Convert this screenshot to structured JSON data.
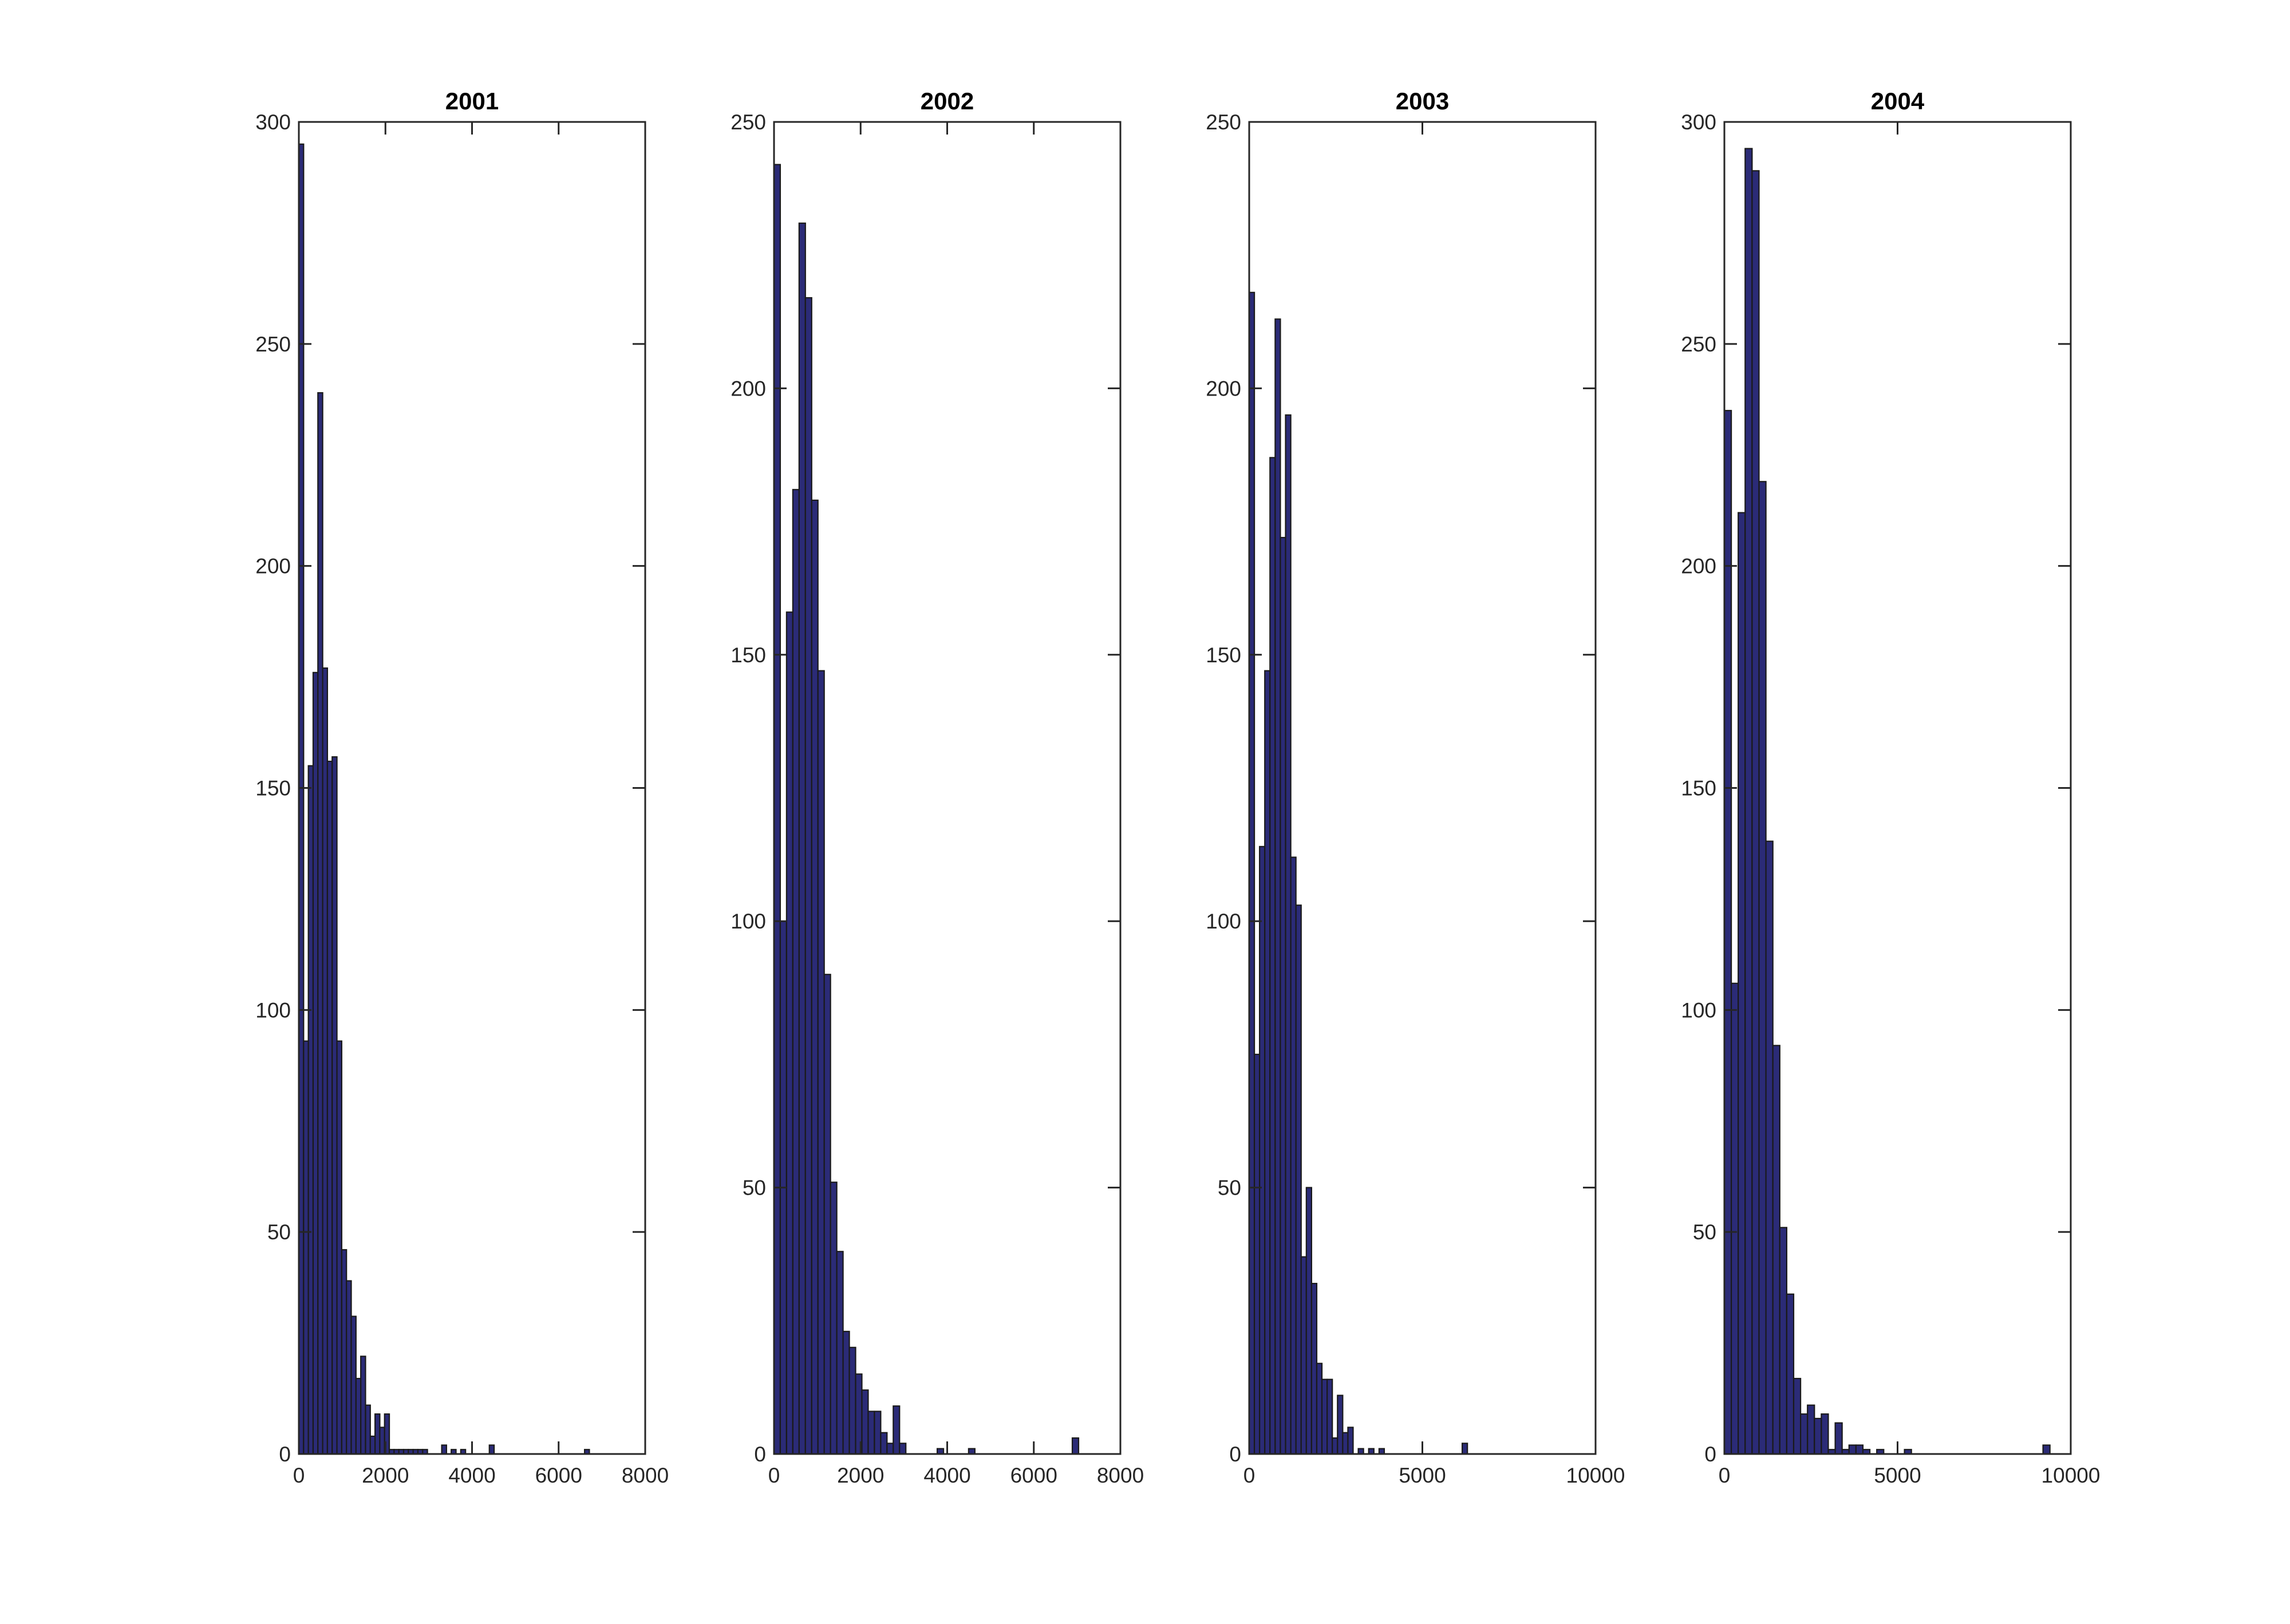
{
  "chart_data": [
    {
      "type": "bar",
      "title": "2001",
      "xlabel": "",
      "ylabel": "",
      "xlim": [
        0,
        8000
      ],
      "ylim": [
        0,
        300
      ],
      "xticks": [
        0,
        2000,
        4000,
        6000,
        8000
      ],
      "xtick_labels": [
        "0",
        "2000",
        "4000",
        "6000",
        "8000"
      ],
      "yticks": [
        0,
        50,
        100,
        150,
        200,
        250,
        300
      ],
      "ytick_labels": [
        "0",
        "50",
        "100",
        "150",
        "200",
        "250",
        "300"
      ],
      "grid": false,
      "bar_color": "#2b2b77",
      "bin_width": 110,
      "x": [
        55,
        165,
        275,
        385,
        495,
        605,
        715,
        825,
        935,
        1045,
        1155,
        1265,
        1375,
        1485,
        1595,
        1705,
        1815,
        1925,
        2035,
        2145,
        2255,
        2365,
        2475,
        2585,
        2695,
        2805,
        2915,
        3355,
        3575,
        3795,
        4455,
        6655
      ],
      "values": [
        295,
        93,
        155,
        176,
        239,
        177,
        156,
        157,
        93,
        46,
        39,
        31,
        17,
        22,
        11,
        4,
        9,
        6,
        9,
        1,
        1,
        1,
        1,
        1,
        1,
        1,
        1,
        2,
        1,
        1,
        2,
        1
      ]
    },
    {
      "type": "bar",
      "title": "2002",
      "xlabel": "",
      "ylabel": "",
      "xlim": [
        0,
        8000
      ],
      "ylim": [
        0,
        250
      ],
      "xticks": [
        0,
        2000,
        4000,
        6000,
        8000
      ],
      "xtick_labels": [
        "0",
        "2000",
        "4000",
        "6000",
        "8000"
      ],
      "yticks": [
        0,
        50,
        100,
        150,
        200,
        250
      ],
      "ytick_labels": [
        "0",
        "50",
        "100",
        "150",
        "200",
        "250"
      ],
      "grid": false,
      "bar_color": "#2b2b77",
      "bin_width": 145,
      "x": [
        72,
        217,
        362,
        507,
        652,
        797,
        942,
        1087,
        1232,
        1377,
        1522,
        1667,
        1812,
        1957,
        2102,
        2247,
        2392,
        2537,
        2682,
        2827,
        2972,
        3842,
        4567,
        6962
      ],
      "values": [
        242,
        100,
        158,
        181,
        231,
        217,
        179,
        147,
        90,
        51,
        38,
        23,
        20,
        15,
        12,
        8,
        8,
        4,
        2,
        9,
        2,
        1,
        1,
        3
      ]
    },
    {
      "type": "bar",
      "title": "2003",
      "xlabel": "",
      "ylabel": "",
      "xlim": [
        0,
        10000
      ],
      "ylim": [
        0,
        250
      ],
      "xticks": [
        0,
        5000,
        10000
      ],
      "xtick_labels": [
        "0",
        "5000",
        "10000"
      ],
      "yticks": [
        0,
        50,
        100,
        150,
        200,
        250
      ],
      "ytick_labels": [
        "0",
        "50",
        "100",
        "150",
        "200",
        "250"
      ],
      "grid": false,
      "bar_color": "#2b2b77",
      "bin_width": 150,
      "x": [
        75,
        225,
        375,
        525,
        675,
        825,
        975,
        1125,
        1275,
        1425,
        1575,
        1725,
        1875,
        2025,
        2175,
        2325,
        2475,
        2625,
        2775,
        2925,
        3225,
        3525,
        3825,
        6225
      ],
      "values": [
        218,
        75,
        114,
        147,
        187,
        213,
        172,
        195,
        112,
        103,
        37,
        50,
        32,
        17,
        14,
        14,
        3,
        11,
        4,
        5,
        1,
        1,
        1,
        2
      ]
    },
    {
      "type": "bar",
      "title": "2004",
      "xlabel": "",
      "ylabel": "",
      "xlim": [
        0,
        10000
      ],
      "ylim": [
        0,
        300
      ],
      "xticks": [
        0,
        5000,
        10000
      ],
      "xtick_labels": [
        "0",
        "5000",
        "10000"
      ],
      "yticks": [
        0,
        50,
        100,
        150,
        200,
        250,
        300
      ],
      "ytick_labels": [
        "0",
        "50",
        "100",
        "150",
        "200",
        "250",
        "300"
      ],
      "grid": false,
      "bar_color": "#2b2b77",
      "bin_width": 200,
      "x": [
        100,
        300,
        500,
        700,
        900,
        1100,
        1300,
        1500,
        1700,
        1900,
        2100,
        2300,
        2500,
        2700,
        2900,
        3100,
        3300,
        3500,
        3700,
        3900,
        4100,
        4500,
        5300,
        9300
      ],
      "values": [
        235,
        106,
        212,
        294,
        289,
        219,
        138,
        92,
        51,
        36,
        17,
        9,
        11,
        8,
        9,
        1,
        7,
        1,
        2,
        2,
        1,
        1,
        1,
        2
      ]
    }
  ]
}
